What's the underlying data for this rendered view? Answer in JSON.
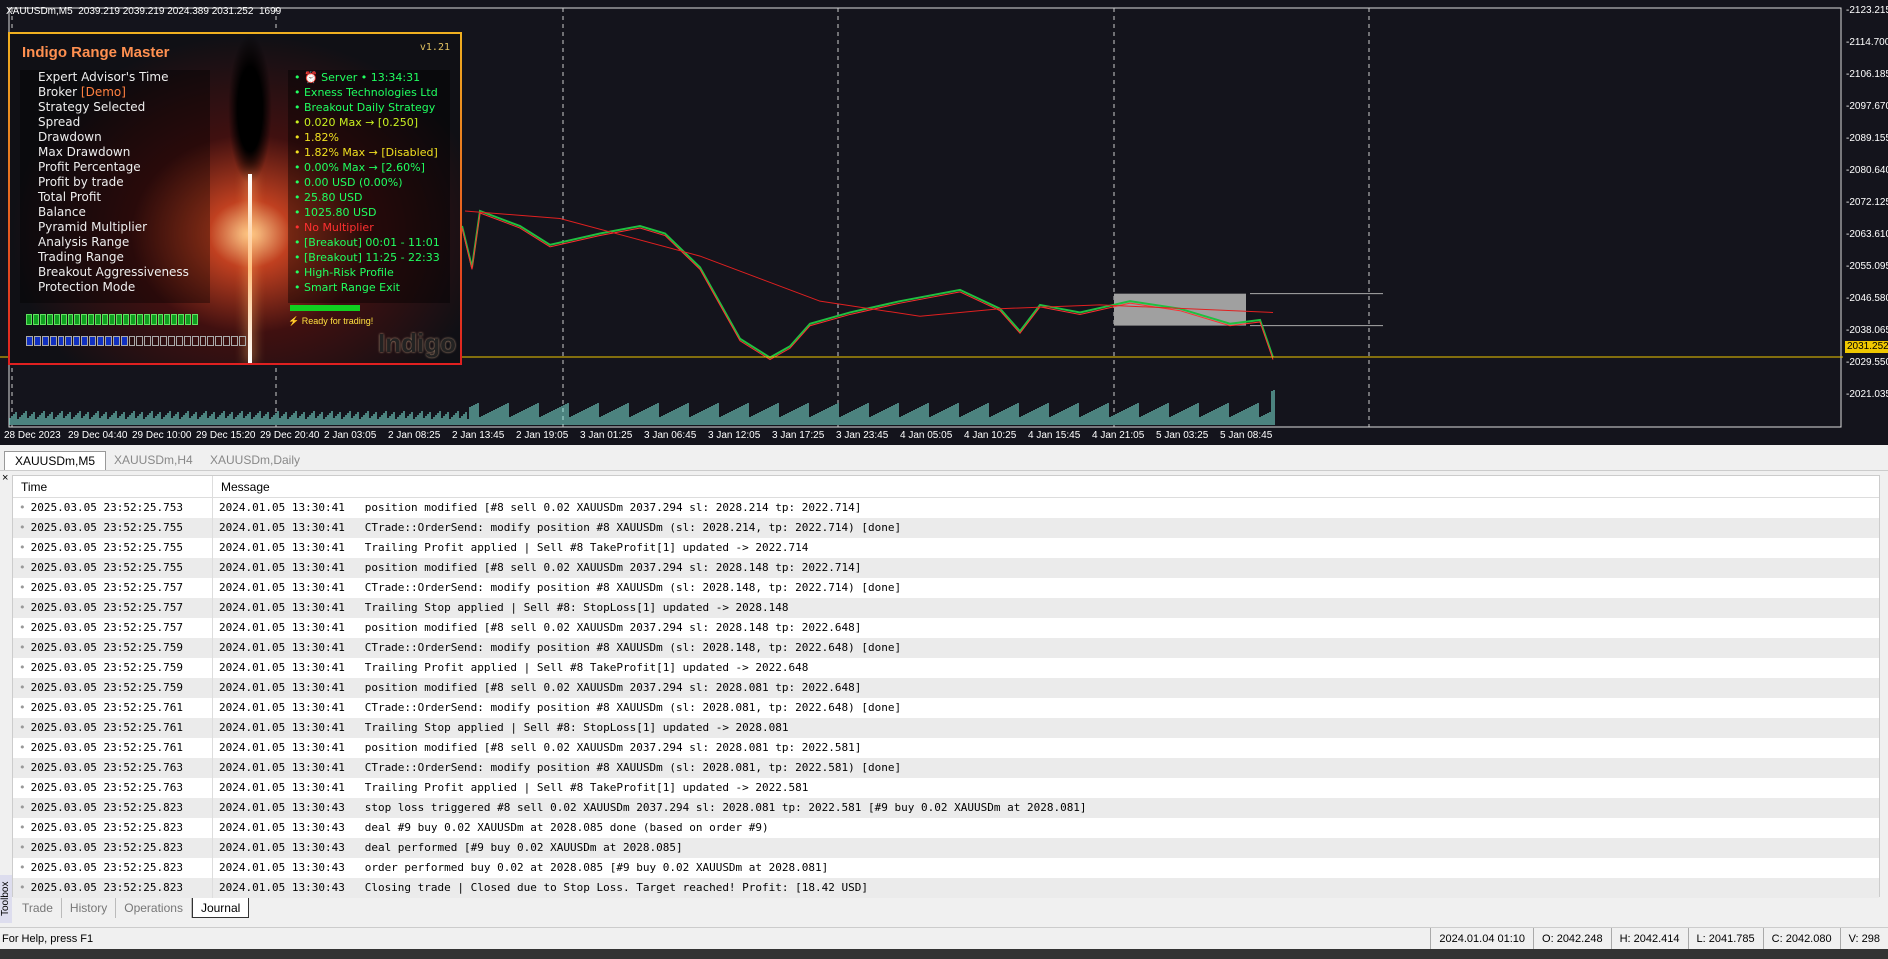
{
  "chart": {
    "header": "XAUUSDm,M5  2039.219 2039.219 2024.389 2031.252  1699",
    "price_labels": [
      "2123.215",
      "2114.700",
      "2106.185",
      "2097.670",
      "2089.155",
      "2080.640",
      "2072.125",
      "2063.610",
      "2055.095",
      "2046.580",
      "2038.065",
      "2029.550",
      "2021.035"
    ],
    "current_price": "2031.252",
    "time_labels": [
      "28 Dec 2023",
      "29 Dec 04:40",
      "29 Dec 10:00",
      "29 Dec 15:20",
      "29 Dec 20:40",
      "2 Jan 03:05",
      "2 Jan 08:25",
      "2 Jan 13:45",
      "2 Jan 19:05",
      "3 Jan 01:25",
      "3 Jan 06:45",
      "3 Jan 12:05",
      "3 Jan 17:25",
      "3 Jan 23:45",
      "4 Jan 05:05",
      "4 Jan 10:25",
      "4 Jan 15:45",
      "4 Jan 21:05",
      "5 Jan 03:25",
      "5 Jan 08:45"
    ],
    "colors": {
      "background": "#14141c",
      "price_line": "#f0c800",
      "candles_up": "#20c040",
      "candles_down": "#ff3030",
      "ma": "#e02020",
      "volume": "#5fa8a0"
    }
  },
  "panel": {
    "title": "Indigo Range Master",
    "version": "v1.21",
    "labels": [
      "Expert Advisor's Time",
      "Broker",
      "Strategy Selected",
      "Spread",
      "Drawdown",
      "Max Drawdown",
      "Profit Percentage",
      "Profit by trade",
      "Total Profit",
      "Balance",
      "Pyramid Multiplier",
      "Analysis Range",
      "Trading Range",
      "Breakout Aggressiveness",
      "Protection Mode"
    ],
    "broker_tag": "[Demo]",
    "values": [
      {
        "text": "⏰ Server • 13:34:31",
        "color": "#20ff60"
      },
      {
        "text": "Exness Technologies Ltd",
        "color": "#20ff60"
      },
      {
        "text": "Breakout Daily Strategy",
        "color": "#20ff60"
      },
      {
        "text": "0.020 Max → [0.250]",
        "color": "#c8f020"
      },
      {
        "text": "1.82%",
        "color": "#f0e020"
      },
      {
        "text": "1.82% Max → [Disabled]",
        "color": "#f0e020"
      },
      {
        "text": "0.00% Max → [2.60%]",
        "color": "#20ff60"
      },
      {
        "text": "0.00 USD (0.00%)",
        "color": "#20ff60"
      },
      {
        "text": "25.80 USD",
        "color": "#20ff60"
      },
      {
        "text": "1025.80 USD",
        "color": "#20ff60"
      },
      {
        "text": "No Multiplier",
        "color": "#ff3030"
      },
      {
        "text": "[Breakout] 00:01 - 11:01",
        "color": "#20ff60"
      },
      {
        "text": "[Breakout] 11:25 - 22:33",
        "color": "#20ff60"
      },
      {
        "text": "High-Risk Profile",
        "color": "#20ff60"
      },
      {
        "text": "Smart Range Exit",
        "color": "#20ff60"
      }
    ],
    "status": "Ready for trading!",
    "logo": "Indigo",
    "progress_blue": 0.45
  },
  "chart_tabs": [
    "XAUUSDm,M5",
    "XAUUSDm,H4",
    "XAUUSDm,Daily"
  ],
  "journal": {
    "columns": [
      "Time",
      "Message"
    ],
    "rows": [
      [
        "2025.03.05 23:52:25.753",
        "2024.01.05 13:30:41   position modified [#8 sell 0.02 XAUUSDm 2037.294 sl: 2028.214 tp: 2022.714]"
      ],
      [
        "2025.03.05 23:52:25.755",
        "2024.01.05 13:30:41   CTrade::OrderSend: modify position #8 XAUUSDm (sl: 2028.214, tp: 2022.714) [done]"
      ],
      [
        "2025.03.05 23:52:25.755",
        "2024.01.05 13:30:41   Trailing Profit applied | Sell #8 TakeProfit[1] updated -> 2022.714"
      ],
      [
        "2025.03.05 23:52:25.755",
        "2024.01.05 13:30:41   position modified [#8 sell 0.02 XAUUSDm 2037.294 sl: 2028.148 tp: 2022.714]"
      ],
      [
        "2025.03.05 23:52:25.757",
        "2024.01.05 13:30:41   CTrade::OrderSend: modify position #8 XAUUSDm (sl: 2028.148, tp: 2022.714) [done]"
      ],
      [
        "2025.03.05 23:52:25.757",
        "2024.01.05 13:30:41   Trailing Stop applied | Sell #8: StopLoss[1] updated -> 2028.148"
      ],
      [
        "2025.03.05 23:52:25.757",
        "2024.01.05 13:30:41   position modified [#8 sell 0.02 XAUUSDm 2037.294 sl: 2028.148 tp: 2022.648]"
      ],
      [
        "2025.03.05 23:52:25.759",
        "2024.01.05 13:30:41   CTrade::OrderSend: modify position #8 XAUUSDm (sl: 2028.148, tp: 2022.648) [done]"
      ],
      [
        "2025.03.05 23:52:25.759",
        "2024.01.05 13:30:41   Trailing Profit applied | Sell #8 TakeProfit[1] updated -> 2022.648"
      ],
      [
        "2025.03.05 23:52:25.759",
        "2024.01.05 13:30:41   position modified [#8 sell 0.02 XAUUSDm 2037.294 sl: 2028.081 tp: 2022.648]"
      ],
      [
        "2025.03.05 23:52:25.761",
        "2024.01.05 13:30:41   CTrade::OrderSend: modify position #8 XAUUSDm (sl: 2028.081, tp: 2022.648) [done]"
      ],
      [
        "2025.03.05 23:52:25.761",
        "2024.01.05 13:30:41   Trailing Stop applied | Sell #8: StopLoss[1] updated -> 2028.081"
      ],
      [
        "2025.03.05 23:52:25.761",
        "2024.01.05 13:30:41   position modified [#8 sell 0.02 XAUUSDm 2037.294 sl: 2028.081 tp: 2022.581]"
      ],
      [
        "2025.03.05 23:52:25.763",
        "2024.01.05 13:30:41   CTrade::OrderSend: modify position #8 XAUUSDm (sl: 2028.081, tp: 2022.581) [done]"
      ],
      [
        "2025.03.05 23:52:25.763",
        "2024.01.05 13:30:41   Trailing Profit applied | Sell #8 TakeProfit[1] updated -> 2022.581"
      ],
      [
        "2025.03.05 23:52:25.823",
        "2024.01.05 13:30:43   stop loss triggered #8 sell 0.02 XAUUSDm 2037.294 sl: 2028.081 tp: 2022.581 [#9 buy 0.02 XAUUSDm at 2028.081]"
      ],
      [
        "2025.03.05 23:52:25.823",
        "2024.01.05 13:30:43   deal #9 buy 0.02 XAUUSDm at 2028.085 done (based on order #9)"
      ],
      [
        "2025.03.05 23:52:25.823",
        "2024.01.05 13:30:43   deal performed [#9 buy 0.02 XAUUSDm at 2028.085]"
      ],
      [
        "2025.03.05 23:52:25.823",
        "2024.01.05 13:30:43   order performed buy 0.02 at 2028.085 [#9 buy 0.02 XAUUSDm at 2028.081]"
      ],
      [
        "2025.03.05 23:52:25.823",
        "2024.01.05 13:30:43   Closing trade | Closed due to Stop Loss. Target reached! Profit: [18.42 USD]"
      ]
    ]
  },
  "toolbox": {
    "label": "Toolbox",
    "tabs": [
      "Trade",
      "History",
      "Operations",
      "Journal"
    ],
    "active": "Journal"
  },
  "status": {
    "help": "For Help, press F1",
    "datetime": "2024.01.04 01:10",
    "open": "O: 2042.248",
    "high": "H: 2042.414",
    "low": "L: 2041.785",
    "close": "C: 2042.080",
    "volume": "V: 298"
  }
}
